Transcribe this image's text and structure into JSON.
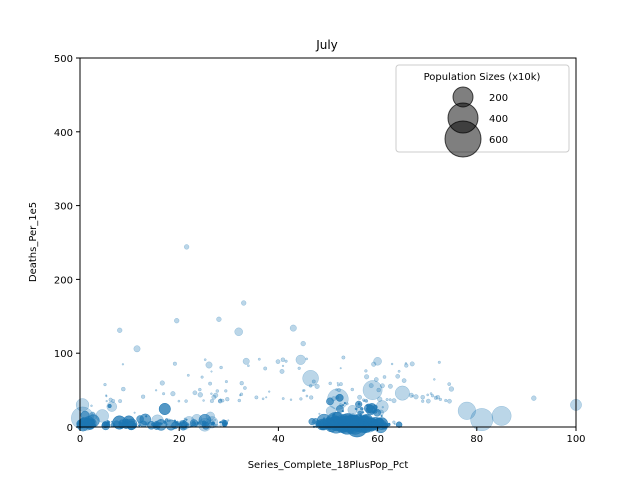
{
  "chart_data": {
    "type": "scatter",
    "title": "July",
    "xlabel": "Series_Complete_18PlusPop_Pct",
    "ylabel": "Deaths_Per_1e5",
    "xlim": [
      0,
      100
    ],
    "ylim": [
      0,
      500
    ],
    "xticks": [
      "0",
      "20",
      "40",
      "60",
      "80",
      "100"
    ],
    "yticks": [
      "0",
      "100",
      "200",
      "300",
      "400",
      "500"
    ],
    "grid": false,
    "point_color": "#1f77b4",
    "point_alpha": 0.3,
    "size_legend": {
      "title": "Population Sizes (x10k)",
      "placement": "top-right",
      "entries": [
        {
          "label": "200",
          "value": 200
        },
        {
          "label": "400",
          "value": 400
        },
        {
          "label": "600",
          "value": 600
        }
      ],
      "marker_color": "#000000",
      "marker_alpha": 0.5
    },
    "cluster": {
      "description_values": "dense cloud of county points",
      "x_range": [
        0,
        85
      ],
      "typical_y_range": [
        0,
        40
      ],
      "peak_x": 55
    },
    "notable_points": [
      {
        "x": 21.5,
        "y": 244,
        "size": 3
      },
      {
        "x": 33,
        "y": 168,
        "size": 3
      },
      {
        "x": 19.5,
        "y": 144,
        "size": 3
      },
      {
        "x": 28,
        "y": 146,
        "size": 3
      },
      {
        "x": 43,
        "y": 134,
        "size": 4
      },
      {
        "x": 32,
        "y": 129,
        "size": 5
      },
      {
        "x": 8,
        "y": 131,
        "size": 3
      },
      {
        "x": 11.5,
        "y": 106,
        "size": 4
      },
      {
        "x": 45,
        "y": 113,
        "size": 3
      },
      {
        "x": 44.5,
        "y": 91,
        "size": 6
      },
      {
        "x": 26,
        "y": 84,
        "size": 4
      },
      {
        "x": 60,
        "y": 89,
        "size": 5
      },
      {
        "x": 33.5,
        "y": 89,
        "size": 4
      },
      {
        "x": 46.5,
        "y": 66,
        "size": 10
      },
      {
        "x": 59,
        "y": 50,
        "size": 12
      },
      {
        "x": 65,
        "y": 46,
        "size": 9
      },
      {
        "x": 100,
        "y": 30,
        "size": 7
      },
      {
        "x": 85,
        "y": 15,
        "size": 12
      },
      {
        "x": 81,
        "y": 10,
        "size": 14
      },
      {
        "x": 78,
        "y": 22,
        "size": 11
      },
      {
        "x": 52,
        "y": 38,
        "size": 13
      },
      {
        "x": 0.5,
        "y": 30,
        "size": 8
      },
      {
        "x": 0.5,
        "y": 12,
        "size": 14
      },
      {
        "x": 4.5,
        "y": 15,
        "size": 8
      },
      {
        "x": 91.5,
        "y": 39,
        "size": 3
      }
    ]
  }
}
